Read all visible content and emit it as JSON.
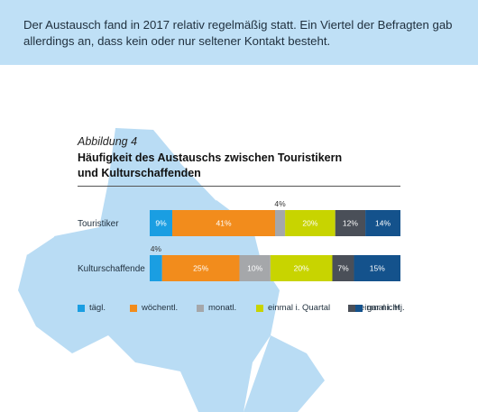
{
  "intro_text": "Der Austausch fand in 2017 relativ regelmäßig statt. Ein Viertel der Befragten gab allerdings an, dass kein oder nur seltener Kontakt besteht.",
  "figure": {
    "number": "Abbildung 4",
    "title_line1": "Häufigkeit des Austauschs zwischen Touristikern",
    "title_line2": "und Kulturschaffenden"
  },
  "colors": {
    "top_band": "#bfe0f6",
    "map_fill": "#b9dcf4",
    "map_stroke": "#ffffff"
  },
  "chart_data": {
    "type": "bar",
    "orientation": "horizontal",
    "stacked": true,
    "normalized": true,
    "categories": [
      "Touristiker",
      "Kulturschaffende"
    ],
    "series": [
      {
        "name": "tägl.",
        "color": "#1a9ee2",
        "values": [
          9,
          4
        ],
        "labels": [
          "9%",
          "4%"
        ]
      },
      {
        "name": "wöchentl.",
        "color": "#f28c1c",
        "values": [
          41,
          25
        ],
        "labels": [
          "41%",
          "25%"
        ]
      },
      {
        "name": "monatl.",
        "color": "#a5a7aa",
        "values": [
          4,
          10
        ],
        "labels": [
          "4%",
          "10%"
        ]
      },
      {
        "name": "einmal i. Quartal",
        "color": "#c8d400",
        "values": [
          20,
          20
        ],
        "labels": [
          "20%",
          "20%"
        ]
      },
      {
        "name": "einmal i. Hj.",
        "color": "#4a4f58",
        "values": [
          12,
          7
        ],
        "labels": [
          "12%",
          "7%"
        ]
      },
      {
        "name": "gar nicht",
        "color": "#14528c",
        "values": [
          14,
          15
        ],
        "labels": [
          "14%",
          "15%"
        ]
      }
    ],
    "legend": {
      "position": "bottom"
    }
  }
}
